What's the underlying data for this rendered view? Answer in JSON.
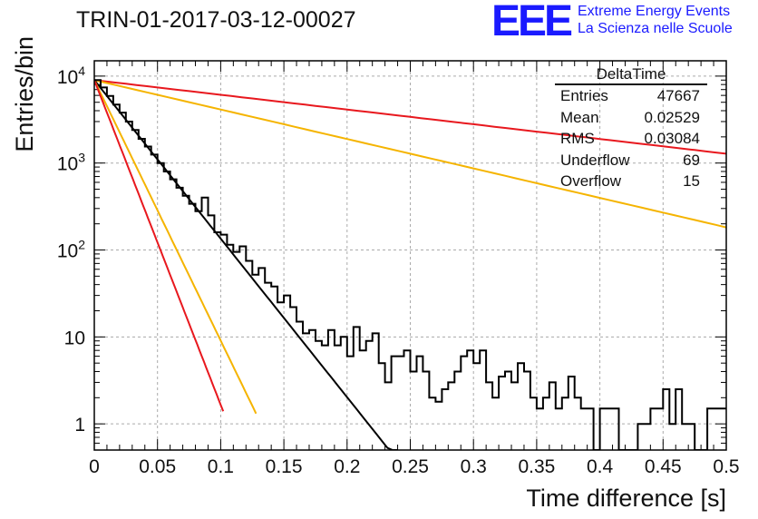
{
  "title": "TRIN-01-2017-03-12-00027",
  "logo": {
    "mark": "EEE",
    "line1": "Extreme Energy Events",
    "line2": "La Scienza nelle Scuole"
  },
  "stats_box": {
    "name": "DeltaTime",
    "rows": [
      {
        "label": "Entries",
        "value": "47667"
      },
      {
        "label": "Mean",
        "value": "0.02529"
      },
      {
        "label": "RMS",
        "value": "0.03084"
      },
      {
        "label": "Underflow",
        "value": "69"
      },
      {
        "label": "Overflow",
        "value": "15"
      }
    ]
  },
  "chart_data": {
    "type": "line",
    "xlabel": "Time difference [s]",
    "ylabel": "Entries/bin",
    "xlim": [
      0,
      0.5
    ],
    "ylim": [
      0.5,
      15000
    ],
    "yscale": "log",
    "grid": true,
    "xticks": [
      "0",
      "0.05",
      "0.1",
      "0.15",
      "0.2",
      "0.25",
      "0.3",
      "0.35",
      "0.4",
      "0.45",
      "0.5"
    ],
    "yticks": [
      {
        "value": 1,
        "label": "1"
      },
      {
        "value": 10,
        "label": "10"
      },
      {
        "value": 100,
        "label": "10^2"
      },
      {
        "value": 1000,
        "label": "10^3"
      },
      {
        "value": 10000,
        "label": "10^4"
      }
    ],
    "histogram": {
      "bin_width": 0.005,
      "color": "#000000",
      "counts": [
        9000,
        7400,
        5900,
        4700,
        3800,
        3000,
        2400,
        1900,
        1550,
        1250,
        1000,
        800,
        650,
        520,
        420,
        340,
        280,
        400,
        250,
        160,
        150,
        115,
        95,
        110,
        75,
        52,
        62,
        42,
        38,
        25,
        30,
        22,
        15,
        11,
        12,
        9,
        8,
        12,
        8,
        10,
        6,
        13,
        7,
        9,
        11,
        5,
        3,
        6,
        6,
        7,
        4,
        6,
        4,
        2,
        1.8,
        2.5,
        3,
        4,
        6,
        7,
        5,
        7,
        3,
        2,
        3.5,
        4,
        3,
        5,
        4,
        2,
        1.5,
        2,
        3,
        1.5,
        2,
        3.5,
        2,
        1.5,
        1.5,
        0.3,
        1.5,
        1.5,
        1.5,
        0.3,
        0.3,
        0.3,
        1,
        1,
        1.5,
        1.5,
        2.5,
        1,
        2.5,
        1,
        1,
        0.3,
        0.3,
        1.5,
        1.5,
        1.5
      ],
      "counts_note": ""
    },
    "fit_lines": [
      {
        "color": "#e8181e",
        "y0": 9000,
        "slope_per_s": 3.9,
        "x_end": 0.5
      },
      {
        "color": "#f5b400",
        "y0": 9000,
        "slope_per_s": 7.8,
        "x_end": 0.5
      },
      {
        "color": "#000000",
        "y0": 9000,
        "slope_per_s": 42.0,
        "x_end": 0.24
      },
      {
        "color": "#f5b400",
        "y0": 9000,
        "slope_per_s": 69.0,
        "x_end": 0.128
      },
      {
        "color": "#e8181e",
        "y0": 9000,
        "slope_per_s": 86.0,
        "x_end": 0.102
      }
    ]
  }
}
